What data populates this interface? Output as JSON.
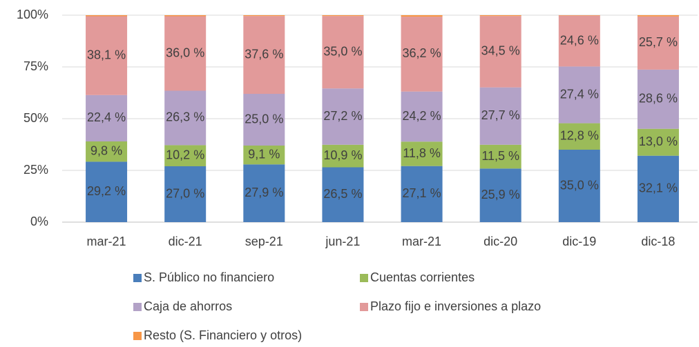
{
  "chart_data": {
    "type": "stacked_bar",
    "categories": [
      "mar-21",
      "dic-21",
      "sep-21",
      "jun-21",
      "mar-21",
      "dic-20",
      "dic-19",
      "dic-18"
    ],
    "series": [
      {
        "name": "S. Público no financiero",
        "color": "#4a7ebb",
        "values": [
          29.2,
          27.0,
          27.9,
          26.5,
          27.1,
          25.9,
          35.0,
          32.1
        ],
        "value_labels": [
          "29,2 %",
          "27,0 %",
          "27,9 %",
          "26,5 %",
          "27,1 %",
          "25,9 %",
          "35,0 %",
          "32,1 %"
        ]
      },
      {
        "name": "Cuentas corrientes",
        "color": "#9bbb59",
        "values": [
          9.8,
          10.2,
          9.1,
          10.9,
          11.8,
          11.5,
          12.8,
          13.0
        ],
        "value_labels": [
          "9,8 %",
          "10,2 %",
          "9,1 %",
          "10,9 %",
          "11,8 %",
          "11,5 %",
          "12,8 %",
          "13,0 %"
        ]
      },
      {
        "name": "Caja de ahorros",
        "color": "#b3a2c7",
        "values": [
          22.4,
          26.3,
          25.0,
          27.2,
          24.2,
          27.7,
          27.4,
          28.6
        ],
        "value_labels": [
          "22,4 %",
          "26,3 %",
          "25,0 %",
          "27,2 %",
          "24,2 %",
          "27,7 %",
          "27,4 %",
          "28,6 %"
        ]
      },
      {
        "name": "Plazo fijo e inversiones a plazo",
        "color": "#e29a9a",
        "values": [
          38.1,
          36.0,
          37.6,
          35.0,
          36.2,
          34.5,
          24.6,
          25.7
        ],
        "value_labels": [
          "38,1 %",
          "36,0 %",
          "37,6 %",
          "35,0 %",
          "36,2 %",
          "34,5 %",
          "24,6 %",
          "25,7 %"
        ]
      },
      {
        "name": "Resto (S. Financiero y otros)",
        "color": "#f79646",
        "values": [
          0.5,
          0.5,
          0.4,
          0.4,
          0.7,
          0.4,
          0.2,
          0.6
        ]
      }
    ],
    "ylim": [
      0,
      100
    ],
    "yticks": [
      {
        "value": 0,
        "label": "0%"
      },
      {
        "value": 25,
        "label": "25%"
      },
      {
        "value": 50,
        "label": "50%"
      },
      {
        "value": 75,
        "label": "75%"
      },
      {
        "value": 100,
        "label": "100%"
      }
    ],
    "grid": true,
    "legend": "bottom"
  }
}
